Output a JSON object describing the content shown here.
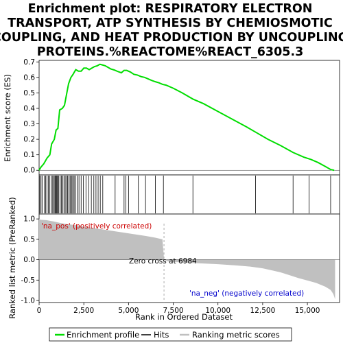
{
  "title_lines": [
    "Enrichment plot: RESPIRATORY ELECTRON",
    "TRANSPORT, ATP SYNTHESIS BY CHEMIOSMOTIC",
    "COUPLING, AND HEAT PRODUCTION BY UNCOUPLING",
    "PROTEINS.%REACTOME%REACT_6305.3"
  ],
  "legend": {
    "enrichment_profile": "Enrichment profile",
    "hits": "Hits",
    "ranking_metric_scores": "Ranking metric scores"
  },
  "colors": {
    "es_line": "#00dd00",
    "hit_line": "#000000",
    "metric_fill": "#c0c0c0",
    "pos_label": "#cc0000",
    "neg_label": "#0000cc",
    "zero_cross_line": "#aaaaaa",
    "gradient": [
      "#cc0000",
      "#ff6666",
      "#ffcccc",
      "#ddddff",
      "#8888ee",
      "#0000cc",
      "#330099"
    ]
  },
  "chart_data": [
    {
      "type": "line",
      "name": "enrichment-score-panel",
      "ylabel": "Enrichment score (ES)",
      "xlim": [
        0,
        16800
      ],
      "ylim": [
        -0.03,
        0.71
      ],
      "yticks": [
        0.0,
        0.1,
        0.2,
        0.3,
        0.4,
        0.5,
        0.6,
        0.7
      ],
      "ytick_labels": [
        "0.0",
        "0.1",
        "0.2",
        "0.3",
        "0.4",
        "0.5",
        "0.6",
        "0.7"
      ],
      "grid": false,
      "x": [
        0,
        100,
        250,
        350,
        450,
        600,
        700,
        850,
        950,
        1050,
        1150,
        1300,
        1420,
        1550,
        1650,
        1780,
        1900,
        2050,
        2200,
        2350,
        2500,
        2650,
        2800,
        2950,
        3100,
        3250,
        3400,
        3550,
        3700,
        3850,
        4000,
        4200,
        4400,
        4600,
        4750,
        4900,
        5100,
        5300,
        5500,
        5700,
        5900,
        6100,
        6300,
        6500,
        6700,
        6900,
        7100,
        7500,
        8000,
        8600,
        9200,
        10000,
        10800,
        11600,
        12200,
        12800,
        13500,
        14200,
        14800,
        15200,
        15600,
        16000,
        16300,
        16500
      ],
      "y": [
        0.0,
        0.02,
        0.04,
        0.06,
        0.08,
        0.1,
        0.17,
        0.2,
        0.26,
        0.27,
        0.39,
        0.4,
        0.42,
        0.5,
        0.56,
        0.6,
        0.62,
        0.65,
        0.64,
        0.64,
        0.66,
        0.66,
        0.65,
        0.66,
        0.67,
        0.675,
        0.685,
        0.68,
        0.675,
        0.665,
        0.655,
        0.648,
        0.638,
        0.63,
        0.645,
        0.645,
        0.635,
        0.62,
        0.615,
        0.605,
        0.6,
        0.59,
        0.58,
        0.572,
        0.565,
        0.555,
        0.55,
        0.53,
        0.5,
        0.46,
        0.43,
        0.38,
        0.33,
        0.28,
        0.24,
        0.2,
        0.16,
        0.115,
        0.085,
        0.07,
        0.05,
        0.025,
        0.005,
        0.0
      ]
    },
    {
      "type": "scatter",
      "name": "hits-panel",
      "x": [
        40,
        110,
        180,
        300,
        370,
        440,
        520,
        600,
        690,
        760,
        830,
        880,
        920,
        960,
        1000,
        1040,
        1100,
        1180,
        1250,
        1320,
        1390,
        1460,
        1530,
        1590,
        1660,
        1730,
        1790,
        1840,
        1900,
        1960,
        2040,
        2130,
        2230,
        2350,
        2480,
        2620,
        2780,
        2920,
        3060,
        3180,
        3300,
        3420,
        3560,
        4250,
        4750,
        4850,
        5000,
        5550,
        5950,
        6500,
        6950,
        8600,
        12100,
        14200,
        15100,
        16300
      ]
    },
    {
      "type": "area",
      "name": "ranked-metric-panel",
      "ylabel": "Ranked list metric (PreRanked)",
      "xlabel": "Rank in Ordered Dataset",
      "xlim": [
        0,
        16800
      ],
      "ylim": [
        -1.05,
        1.12
      ],
      "yticks": [
        -1.0,
        -0.5,
        0.0,
        0.5,
        1.0
      ],
      "ytick_labels": [
        "-1.0",
        "-0.5",
        "0.0",
        "0.5",
        "1.0"
      ],
      "xticks": [
        0,
        2500,
        5000,
        7500,
        10000,
        12500,
        15000
      ],
      "xtick_labels": [
        "0",
        "2,500",
        "5,000",
        "7,500",
        "10,000",
        "12,500",
        "15,000"
      ],
      "x": [
        0,
        80,
        400,
        800,
        1200,
        1600,
        2000,
        2400,
        3000,
        3600,
        4200,
        4800,
        5400,
        6000,
        6500,
        6900,
        6984,
        7200,
        8000,
        9000,
        10000,
        11000,
        11800,
        12500,
        13000,
        13500,
        14000,
        14500,
        15000,
        15500,
        16000,
        16300,
        16450,
        16550
      ],
      "y": [
        1.0,
        0.98,
        0.97,
        0.94,
        0.9,
        0.87,
        0.85,
        0.82,
        0.78,
        0.74,
        0.7,
        0.66,
        0.62,
        0.58,
        0.54,
        0.5,
        0.0,
        -0.04,
        -0.07,
        -0.09,
        -0.11,
        -0.14,
        -0.17,
        -0.21,
        -0.26,
        -0.31,
        -0.38,
        -0.45,
        -0.51,
        -0.57,
        -0.66,
        -0.74,
        -0.84,
        -0.97
      ],
      "zero_cross": 6984,
      "zero_cross_label": "Zero cross at 6984",
      "pos_label": "'na_pos' (positively correlated)",
      "neg_label": "'na_neg' (negatively correlated)"
    }
  ]
}
